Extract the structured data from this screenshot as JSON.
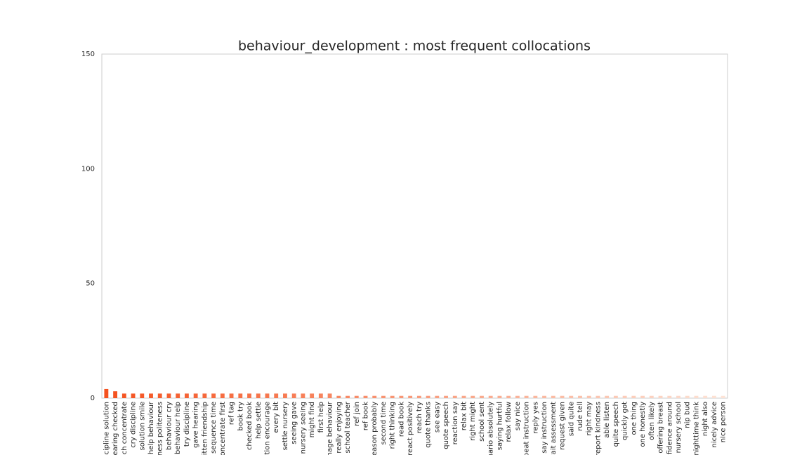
{
  "chart_data": {
    "type": "bar",
    "title": "behaviour_development : most frequent collocations",
    "categories": [
      "discipline solution",
      "hearing checked",
      "teach concentrate",
      "cry discipline",
      "solution smile",
      "help behaviour",
      "kindness politeness",
      "behaviour cry",
      "behaviour help",
      "try discipline",
      "gave hearing",
      "written friendship",
      "sequence time",
      "concentrate first",
      "ref tag",
      "book try",
      "checked book",
      "help settle",
      "solution encourage",
      "every bit",
      "settle nursery",
      "seeing gave",
      "nursery seeing",
      "might find",
      "first help",
      "manage behaviour",
      "really enjoying",
      "school teacher",
      "ref join",
      "ref book",
      "reason probably",
      "second time",
      "right thinking",
      "read book",
      "react positively",
      "reach try",
      "quote thanks",
      "see easy",
      "quote speech",
      "reaction say",
      "relax bit",
      "right might",
      "school sent",
      "scenario absolutely",
      "saying hurtful",
      "relax follow",
      "say nice",
      "repeat instruction",
      "reply yes",
      "say instruction",
      "wait assessment",
      "request given",
      "said quite",
      "rude tell",
      "right may",
      "report kindness",
      "able listen",
      "quite speech",
      "quickly got",
      "one thing",
      "one honestly",
      "often likely",
      "offering breast",
      "confidence around",
      "nursery school",
      "nip bud",
      "nighttime think",
      "night also",
      "nicely advice",
      "nice person"
    ],
    "values": [
      4,
      3,
      2,
      2,
      2,
      2,
      2,
      2,
      2,
      2,
      2,
      2,
      2,
      2,
      2,
      2,
      2,
      2,
      2,
      2,
      2,
      2,
      2,
      2,
      2,
      2,
      1,
      1,
      1,
      1,
      1,
      1,
      1,
      1,
      1,
      1,
      1,
      1,
      1,
      1,
      1,
      1,
      1,
      1,
      1,
      1,
      1,
      1,
      1,
      1,
      1,
      1,
      1,
      1,
      1,
      1,
      1,
      1,
      1,
      1,
      1,
      1,
      1,
      1,
      1,
      1,
      1,
      1,
      1,
      1
    ],
    "color_range": [
      "#f4511e",
      "#fde3d6"
    ],
    "ylim": [
      0,
      150
    ],
    "yticks": [
      0,
      50,
      100,
      150
    ],
    "grid": false
  }
}
